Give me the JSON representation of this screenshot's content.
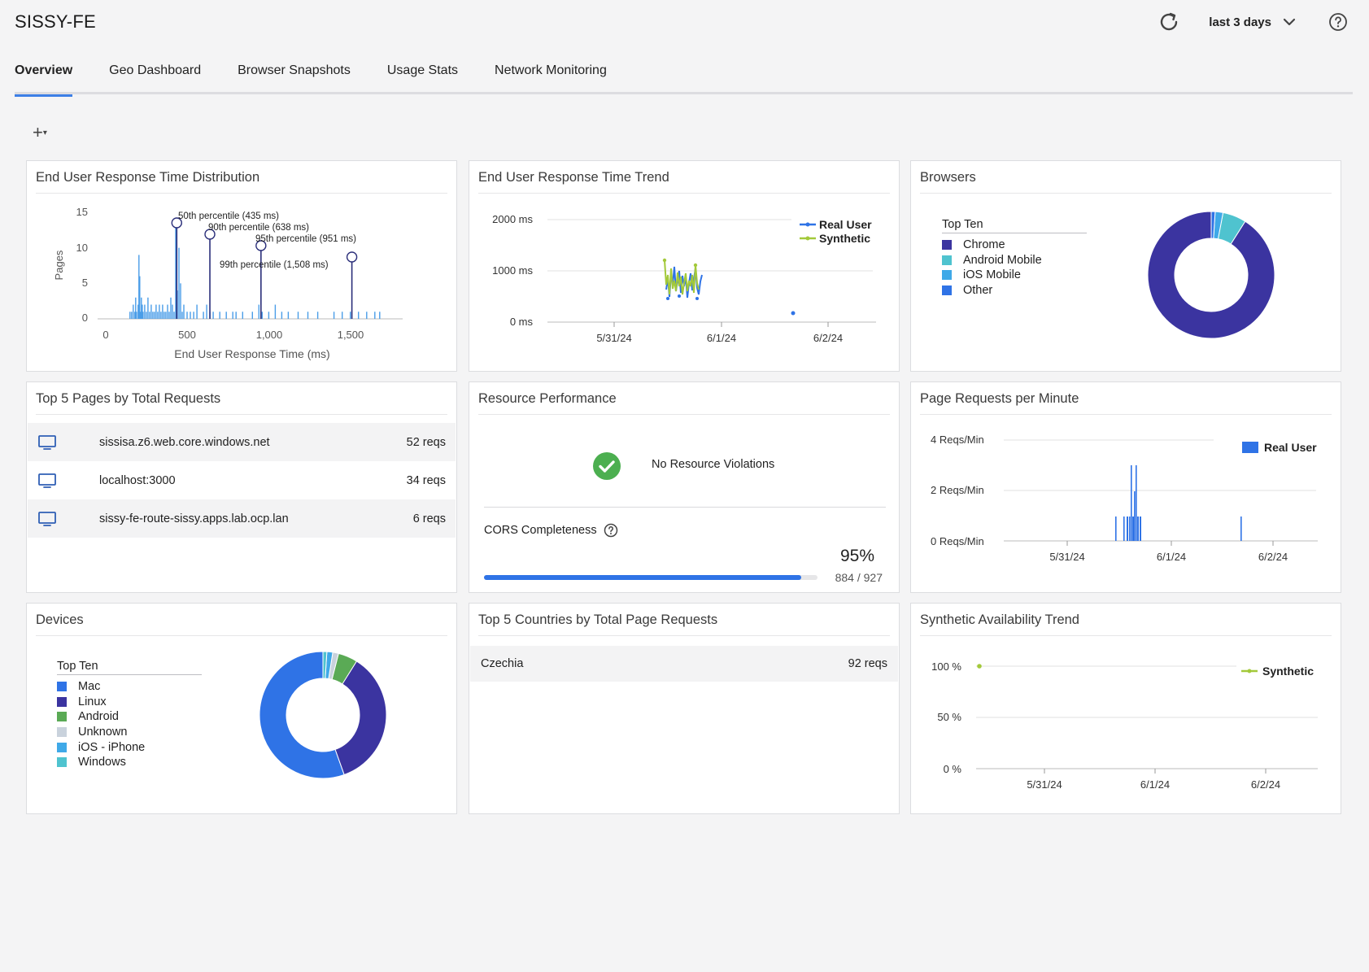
{
  "app": {
    "title": "SISSY-FE",
    "time_range": "last 3 days"
  },
  "tabs": [
    {
      "label": "Overview",
      "active": true
    },
    {
      "label": "Geo Dashboard"
    },
    {
      "label": "Browser Snapshots"
    },
    {
      "label": "Usage Stats"
    },
    {
      "label": "Network Monitoring"
    }
  ],
  "toolbar": {
    "add_label": "+",
    "add_caret": "▾"
  },
  "widgets": {
    "distribution": {
      "title": "End User Response Time Distribution",
      "xlabel": "End User Response Time (ms)",
      "ylabel": "Pages",
      "xticks": [
        "0",
        "500",
        "1,000",
        "1,500"
      ],
      "yticks": [
        "15",
        "10",
        "5",
        "0"
      ],
      "percentiles": [
        {
          "label": "50th percentile (435 ms)",
          "value": 435
        },
        {
          "label": "90th percentile (638 ms)",
          "value": 638
        },
        {
          "label": "95th percentile (951 ms)",
          "value": 951
        },
        {
          "label": "99th percentile (1,508 ms)",
          "value": 1508
        }
      ]
    },
    "trend": {
      "title": "End User Response Time Trend",
      "yticks": [
        "2000 ms",
        "1000 ms",
        "0 ms"
      ],
      "xticks": [
        "5/31/24",
        "6/1/24",
        "6/2/24"
      ],
      "legend": [
        "Real User",
        "Synthetic"
      ]
    },
    "browsers": {
      "title": "Browsers",
      "legend_title": "Top Ten",
      "items": [
        {
          "label": "Chrome",
          "color": "#3b34a0",
          "value": 91
        },
        {
          "label": "Android Mobile",
          "color": "#4fc3cf",
          "value": 6
        },
        {
          "label": "iOS Mobile",
          "color": "#3fa9e8",
          "value": 2
        },
        {
          "label": "Other",
          "color": "#2f73e6",
          "value": 1
        }
      ]
    },
    "top_pages": {
      "title": "Top 5 Pages by Total Requests",
      "rows": [
        {
          "url": "sissisa.z6.web.core.windows.net",
          "reqs": "52 reqs"
        },
        {
          "url": "localhost:3000",
          "reqs": "34 reqs"
        },
        {
          "url": "sissy-fe-route-sissy.apps.lab.ocp.lan",
          "reqs": "6 reqs"
        }
      ]
    },
    "resource": {
      "title": "Resource Performance",
      "no_violations": "No Resource Violations",
      "cors_label": "CORS Completeness",
      "cors_percent": "95%",
      "cors_fraction": 0.95,
      "cors_count": "884 / 927"
    },
    "page_requests": {
      "title": "Page Requests per Minute",
      "yticks": [
        "4 Reqs/Min",
        "2 Reqs/Min",
        "0 Reqs/Min"
      ],
      "xticks": [
        "5/31/24",
        "6/1/24",
        "6/2/24"
      ],
      "legend": "Real User"
    },
    "devices": {
      "title": "Devices",
      "legend_title": "Top Ten",
      "items": [
        {
          "label": "Mac",
          "color": "#2f73e6",
          "value": 56
        },
        {
          "label": "Linux",
          "color": "#3b34a0",
          "value": 36
        },
        {
          "label": "Android",
          "color": "#5aaa55",
          "value": 5
        },
        {
          "label": "Unknown",
          "color": "#c9d2dc",
          "value": 1.5
        },
        {
          "label": "iOS - iPhone",
          "color": "#3fa9e8",
          "value": 1.5
        },
        {
          "label": "Windows",
          "color": "#4fc3cf",
          "value": 1
        }
      ]
    },
    "countries": {
      "title": "Top 5 Countries by Total Page Requests",
      "rows": [
        {
          "name": "Czechia",
          "reqs": "92 reqs"
        }
      ]
    },
    "availability": {
      "title": "Synthetic Availability Trend",
      "yticks": [
        "100 %",
        "50 %",
        "0 %"
      ],
      "xticks": [
        "5/31/24",
        "6/1/24",
        "6/2/24"
      ],
      "legend": "Synthetic"
    }
  }
}
